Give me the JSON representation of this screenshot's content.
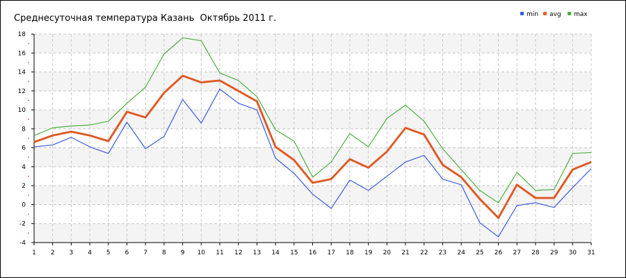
{
  "chart_data": {
    "type": "line",
    "title": "Среднесуточная температура Казань  Октябрь 2011 г.",
    "xlabel": "",
    "ylabel": "",
    "x": [
      1,
      2,
      3,
      4,
      5,
      6,
      7,
      8,
      9,
      10,
      11,
      12,
      13,
      14,
      15,
      16,
      17,
      18,
      19,
      20,
      21,
      22,
      23,
      24,
      25,
      26,
      27,
      28,
      29,
      30,
      31
    ],
    "xlim": [
      1,
      31
    ],
    "ylim": [
      -4,
      18
    ],
    "y_ticks": [
      -4,
      -2,
      0,
      2,
      4,
      6,
      8,
      10,
      12,
      14,
      16,
      18
    ],
    "grid": true,
    "legend_position": "top-right",
    "series": [
      {
        "name": "min",
        "color": "#3b5bdb",
        "values": [
          6.1,
          6.3,
          7.1,
          6.1,
          5.4,
          8.7,
          5.9,
          7.2,
          11.1,
          8.6,
          12.2,
          10.7,
          10.0,
          4.9,
          3.3,
          1.1,
          -0.4,
          2.6,
          1.5,
          3.0,
          4.5,
          5.2,
          2.7,
          2.1,
          -1.9,
          -3.4,
          -0.1,
          0.2,
          -0.3,
          1.8,
          3.8
        ]
      },
      {
        "name": "avg",
        "color": "#e8622c",
        "values": [
          6.6,
          7.3,
          7.7,
          7.3,
          6.7,
          9.8,
          9.2,
          11.8,
          13.6,
          12.9,
          13.1,
          12.0,
          10.9,
          6.1,
          4.7,
          2.3,
          2.7,
          4.8,
          3.9,
          5.6,
          8.1,
          7.4,
          4.2,
          2.9,
          0.6,
          -1.4,
          2.1,
          0.7,
          0.7,
          3.7,
          4.5
        ]
      },
      {
        "name": "max",
        "color": "#4caf3f",
        "values": [
          7.3,
          8.1,
          8.3,
          8.4,
          8.8,
          10.7,
          12.4,
          15.9,
          17.6,
          17.3,
          13.9,
          13.1,
          11.4,
          7.9,
          6.7,
          2.9,
          4.5,
          7.5,
          6.1,
          9.1,
          10.5,
          8.8,
          5.9,
          3.7,
          1.5,
          0.2,
          3.4,
          1.5,
          1.6,
          5.4,
          5.5
        ]
      }
    ]
  }
}
